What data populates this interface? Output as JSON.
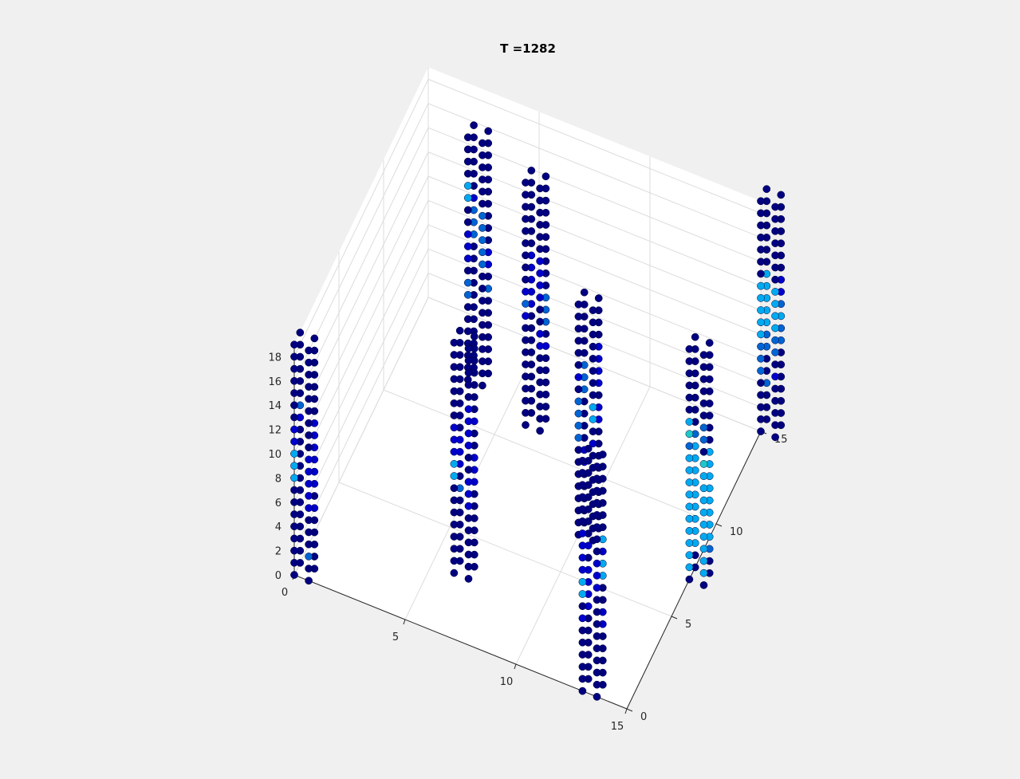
{
  "chart_data": {
    "type": "scatter",
    "title": "T =1282",
    "xlabel": "",
    "ylabel": "",
    "zlabel": "",
    "xlim": [
      0,
      15
    ],
    "ylim": [
      0,
      15
    ],
    "zlim": [
      0,
      19
    ],
    "x_ticks": [
      "0",
      "5",
      "10",
      "15"
    ],
    "y_ticks": [
      "0",
      "5",
      "10",
      "15"
    ],
    "z_ticks": [
      "0",
      "2",
      "4",
      "6",
      "8",
      "10",
      "12",
      "14",
      "16",
      "18"
    ],
    "grid": true,
    "colormap": [
      "#000080",
      "#0000cd",
      "#0064d2",
      "#00aaf0",
      "#1ec8c8"
    ],
    "marker_color_default": "#000080",
    "towers": [
      {
        "x": 0,
        "y": 0,
        "nz": 20,
        "z": [
          0,
          19
        ],
        "hot": [
          [
            0,
            8,
            3,
            3
          ],
          [
            0,
            11,
            2,
            1
          ],
          [
            1,
            10,
            1,
            2
          ],
          [
            1,
            8,
            3,
            1
          ],
          [
            1,
            6,
            4,
            1
          ],
          [
            2,
            13,
            1,
            2
          ],
          [
            2,
            12,
            1,
            1
          ],
          [
            3,
            11,
            2,
            1
          ],
          [
            3,
            9,
            3,
            1
          ],
          [
            3,
            7,
            4,
            1
          ],
          [
            3,
            5,
            1,
            1
          ],
          [
            1,
            2,
            1,
            2
          ]
        ]
      },
      {
        "x": 3,
        "y": 12,
        "nz": 21,
        "z": [
          0,
          20
        ],
        "hot": [
          [
            0,
            15,
            2,
            3
          ],
          [
            0,
            12,
            1,
            1
          ],
          [
            1,
            10,
            3,
            2
          ],
          [
            1,
            13,
            2,
            2
          ],
          [
            2,
            14,
            1,
            1
          ],
          [
            2,
            11,
            3,
            2
          ],
          [
            3,
            9,
            2,
            1
          ],
          [
            3,
            7,
            1,
            2
          ],
          [
            0,
            7,
            2,
            2
          ],
          [
            0,
            10,
            2,
            1
          ]
        ]
      },
      {
        "x": 6,
        "y": 3,
        "nz": 20,
        "z": [
          0,
          19
        ],
        "hot": [
          [
            0,
            8,
            3,
            3
          ],
          [
            0,
            10,
            3,
            1
          ],
          [
            1,
            11,
            4,
            1
          ],
          [
            1,
            6,
            2,
            1
          ],
          [
            1,
            8,
            1,
            1
          ],
          [
            2,
            9,
            2,
            1
          ],
          [
            2,
            8,
            3,
            1
          ],
          [
            3,
            7,
            3,
            1
          ],
          [
            2,
            6,
            1,
            2
          ],
          [
            3,
            12,
            1,
            1
          ]
        ]
      },
      {
        "x": 6,
        "y": 11,
        "nz": 21,
        "z": [
          0,
          20
        ],
        "hot": [
          [
            0,
            9,
            3,
            1
          ],
          [
            0,
            10,
            1,
            2
          ],
          [
            1,
            12,
            3,
            1
          ],
          [
            1,
            11,
            2,
            1
          ],
          [
            2,
            10,
            4,
            1
          ],
          [
            2,
            9,
            1,
            1
          ],
          [
            3,
            8,
            3,
            2
          ],
          [
            3,
            6,
            1,
            1
          ],
          [
            1,
            7,
            2,
            1
          ]
        ]
      },
      {
        "x": 13,
        "y": 0,
        "nz": 20,
        "z": [
          0,
          19
        ],
        "hot": [
          [
            0,
            8,
            3,
            3
          ],
          [
            0,
            10,
            4,
            1
          ],
          [
            0,
            6,
            1,
            1
          ],
          [
            1,
            9,
            3,
            1
          ],
          [
            2,
            6,
            3,
            1
          ],
          [
            2,
            11,
            1,
            1
          ],
          [
            3,
            9,
            4,
            3
          ],
          [
            3,
            11,
            1,
            1
          ],
          [
            2,
            8,
            2,
            1
          ],
          [
            3,
            5,
            2,
            1
          ]
        ]
      },
      {
        "x": 10,
        "y": 7,
        "nz": 20,
        "z": [
          0,
          19
        ],
        "hot": [
          [
            0,
            8,
            4,
            2
          ],
          [
            0,
            13,
            1,
            1
          ],
          [
            1,
            10,
            2,
            3
          ],
          [
            1,
            8,
            1,
            1
          ],
          [
            2,
            11,
            3,
            2
          ],
          [
            3,
            12,
            4,
            1
          ],
          [
            3,
            9,
            2,
            1
          ],
          [
            2,
            5,
            2,
            1
          ]
        ]
      },
      {
        "x": 15,
        "y": 7,
        "nz": 20,
        "z": [
          0,
          19
        ],
        "hot": [
          [
            0,
            1,
            11,
            3
          ],
          [
            0,
            11,
            1,
            2
          ],
          [
            0,
            12,
            1,
            4
          ],
          [
            0,
            13,
            1,
            3
          ],
          [
            1,
            1,
            9,
            3
          ],
          [
            1,
            10,
            1,
            4
          ],
          [
            1,
            12,
            2,
            2
          ],
          [
            2,
            2,
            9,
            3
          ],
          [
            2,
            11,
            1,
            2
          ],
          [
            3,
            3,
            8,
            3
          ],
          [
            3,
            2,
            1,
            2
          ]
        ]
      },
      {
        "x": 15,
        "y": 15,
        "nz": 20,
        "z": [
          0,
          19
        ],
        "hot": [
          [
            0,
            8,
            5,
            3
          ],
          [
            0,
            5,
            3,
            2
          ],
          [
            1,
            9,
            4,
            3
          ],
          [
            1,
            7,
            2,
            2
          ],
          [
            1,
            5,
            1,
            1
          ],
          [
            2,
            8,
            5,
            3
          ],
          [
            2,
            6,
            2,
            2
          ],
          [
            3,
            7,
            5,
            2
          ],
          [
            3,
            11,
            2,
            1
          ],
          [
            3,
            9,
            1,
            3
          ],
          [
            2,
            3,
            1,
            2
          ]
        ]
      }
    ]
  }
}
